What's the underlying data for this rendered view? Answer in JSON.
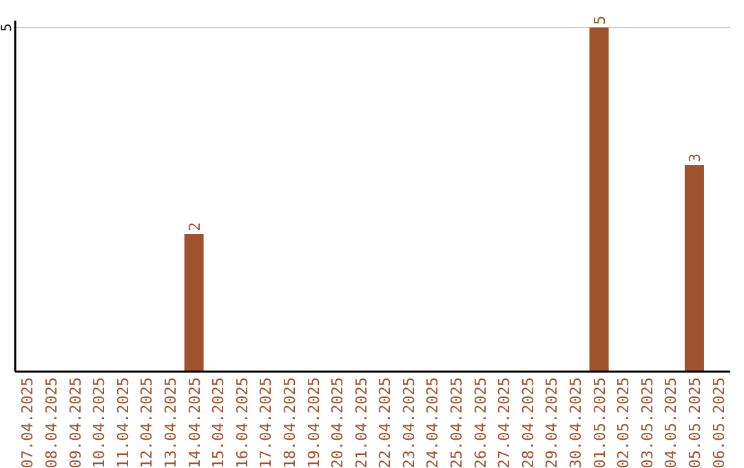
{
  "chart_data": {
    "type": "bar",
    "categories": [
      "07.04.2025",
      "08.04.2025",
      "09.04.2025",
      "10.04.2025",
      "11.04.2025",
      "12.04.2025",
      "13.04.2025",
      "14.04.2025",
      "15.04.2025",
      "16.04.2025",
      "17.04.2025",
      "18.04.2025",
      "19.04.2025",
      "20.04.2025",
      "21.04.2025",
      "22.04.2025",
      "23.04.2025",
      "24.04.2025",
      "25.04.2025",
      "26.04.2025",
      "27.04.2025",
      "28.04.2025",
      "29.04.2025",
      "30.04.2025",
      "01.05.2025",
      "02.05.2025",
      "03.05.2025",
      "04.05.2025",
      "05.05.2025",
      "06.05.2025"
    ],
    "values": [
      0,
      0,
      0,
      0,
      0,
      0,
      0,
      2,
      0,
      0,
      0,
      0,
      0,
      0,
      0,
      0,
      0,
      0,
      0,
      0,
      0,
      0,
      0,
      0,
      5,
      0,
      0,
      0,
      3,
      0
    ],
    "value_labels": [
      null,
      null,
      null,
      null,
      null,
      null,
      null,
      "2",
      null,
      null,
      null,
      null,
      null,
      null,
      null,
      null,
      null,
      null,
      null,
      null,
      null,
      null,
      null,
      null,
      "5",
      null,
      null,
      null,
      "3",
      null
    ],
    "color": "#a0522d",
    "ylim": [
      0,
      5
    ],
    "yticks": [
      5
    ],
    "ref_lines": [
      {
        "axis": "y",
        "value": 5,
        "color": "#c8c8c8"
      }
    ]
  }
}
